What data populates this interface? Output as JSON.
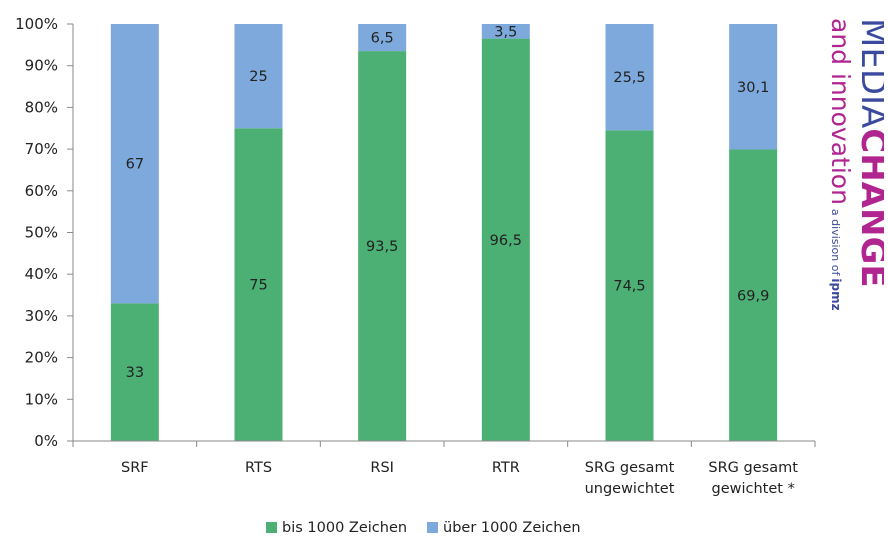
{
  "chart_data": {
    "type": "bar",
    "stacked": true,
    "categories": [
      [
        "SRF"
      ],
      [
        "RTS"
      ],
      [
        "RSI"
      ],
      [
        "RTR"
      ],
      [
        "SRG gesamt",
        "ungewichtet"
      ],
      [
        "SRG gesamt",
        "gewichtet *"
      ]
    ],
    "series": [
      {
        "name": "bis 1000 Zeichen",
        "color": "#4caf73",
        "values": [
          33,
          75,
          93.5,
          96.5,
          74.5,
          69.9
        ],
        "labels": [
          "33",
          "75",
          "93,5",
          "96,5",
          "74,5",
          "69,9"
        ]
      },
      {
        "name": "über 1000 Zeichen",
        "color": "#7ea9dc",
        "values": [
          67,
          25,
          6.5,
          3.5,
          25.5,
          30.1
        ],
        "labels": [
          "67",
          "25",
          "6,5",
          "3,5",
          "25,5",
          "30,1"
        ]
      }
    ],
    "yticks": [
      "0%",
      "10%",
      "20%",
      "30%",
      "40%",
      "50%",
      "60%",
      "70%",
      "80%",
      "90%",
      "100%"
    ],
    "ylim": [
      0,
      100
    ],
    "grid": false,
    "legend_position": "bottom"
  },
  "logo": {
    "line1": "MEDIA",
    "line1b": "CHANGE",
    "line2": "and innovation",
    "line3": "a division of",
    "line3b": "ipmz",
    "colors": {
      "media": "#3b4a9c",
      "change": "#b0258f",
      "innovation": "#b0258f",
      "division": "#3b4a9c"
    }
  }
}
